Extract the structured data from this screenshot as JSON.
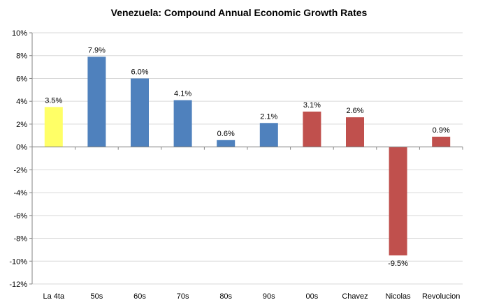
{
  "chart_data": {
    "type": "bar",
    "title": "Venezuela: Compound Annual Economic Growth Rates",
    "xlabel": "",
    "ylabel": "",
    "categories": [
      "La 4ta",
      "50s",
      "60s",
      "70s",
      "80s",
      "90s",
      "00s",
      "Chavez",
      "Nicolas",
      "Revolucion"
    ],
    "values": [
      3.5,
      7.9,
      6.0,
      4.1,
      0.6,
      2.1,
      3.1,
      2.6,
      -9.5,
      0.9
    ],
    "data_labels": [
      "3.5%",
      "7.9%",
      "6.0%",
      "4.1%",
      "0.6%",
      "2.1%",
      "3.1%",
      "2.6%",
      "-9.5%",
      "0.9%"
    ],
    "bar_colors": [
      "#ffff66",
      "#4f81bd",
      "#4f81bd",
      "#4f81bd",
      "#4f81bd",
      "#4f81bd",
      "#c0504d",
      "#c0504d",
      "#c0504d",
      "#c0504d"
    ],
    "ylim": [
      -12,
      10
    ],
    "y_ticks": [
      10,
      8,
      6,
      4,
      2,
      0,
      -2,
      -4,
      -6,
      -8,
      -10,
      -12
    ],
    "y_tick_labels": [
      "10%",
      "8%",
      "6%",
      "4%",
      "2%",
      "0%",
      "-2%",
      "-4%",
      "-6%",
      "-8%",
      "-10%",
      "-12%"
    ],
    "grid": true,
    "grid_color": "#d9d9d9",
    "axis_color": "#868686",
    "legend": "none"
  }
}
